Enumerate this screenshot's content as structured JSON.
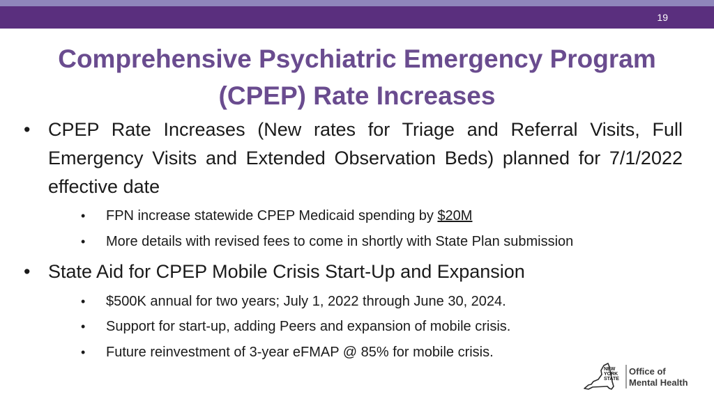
{
  "header": {
    "page_number": "19"
  },
  "title": {
    "line1": "Comprehensive Psychiatric Emergency Program",
    "line2": "(CPEP) Rate Increases"
  },
  "bullets": [
    {
      "text": "CPEP Rate Increases (New rates for Triage and Referral Visits, Full Emergency Visits and Extended Observation Beds) planned for 7/1/2022 effective date",
      "sub": [
        {
          "text_before": "FPN increase statewide CPEP Medicaid spending by ",
          "underlined": "$20M"
        },
        {
          "text": "More details with revised fees to come in shortly with State Plan submission"
        }
      ]
    },
    {
      "text": "State Aid for CPEP Mobile Crisis Start-Up and Expansion",
      "sub": [
        {
          "text": "$500K annual for two years; July 1, 2022 through June 30, 2024."
        },
        {
          "text": "Support for start-up, adding Peers and expansion of mobile crisis."
        },
        {
          "text": "Future reinvestment of 3-year eFMAP @ 85% for mobile crisis."
        }
      ]
    }
  ],
  "bullet_glyph": "•",
  "logo": {
    "state_lines": [
      "NEW",
      "YORK",
      "STATE"
    ],
    "office_line1": "Office of",
    "office_line2": "Mental Health"
  },
  "colors": {
    "header_bar": "#5a2f7e",
    "top_stripe": "#8f86bb",
    "title": "#6a4c8f",
    "body_text": "#1a1a1a"
  }
}
